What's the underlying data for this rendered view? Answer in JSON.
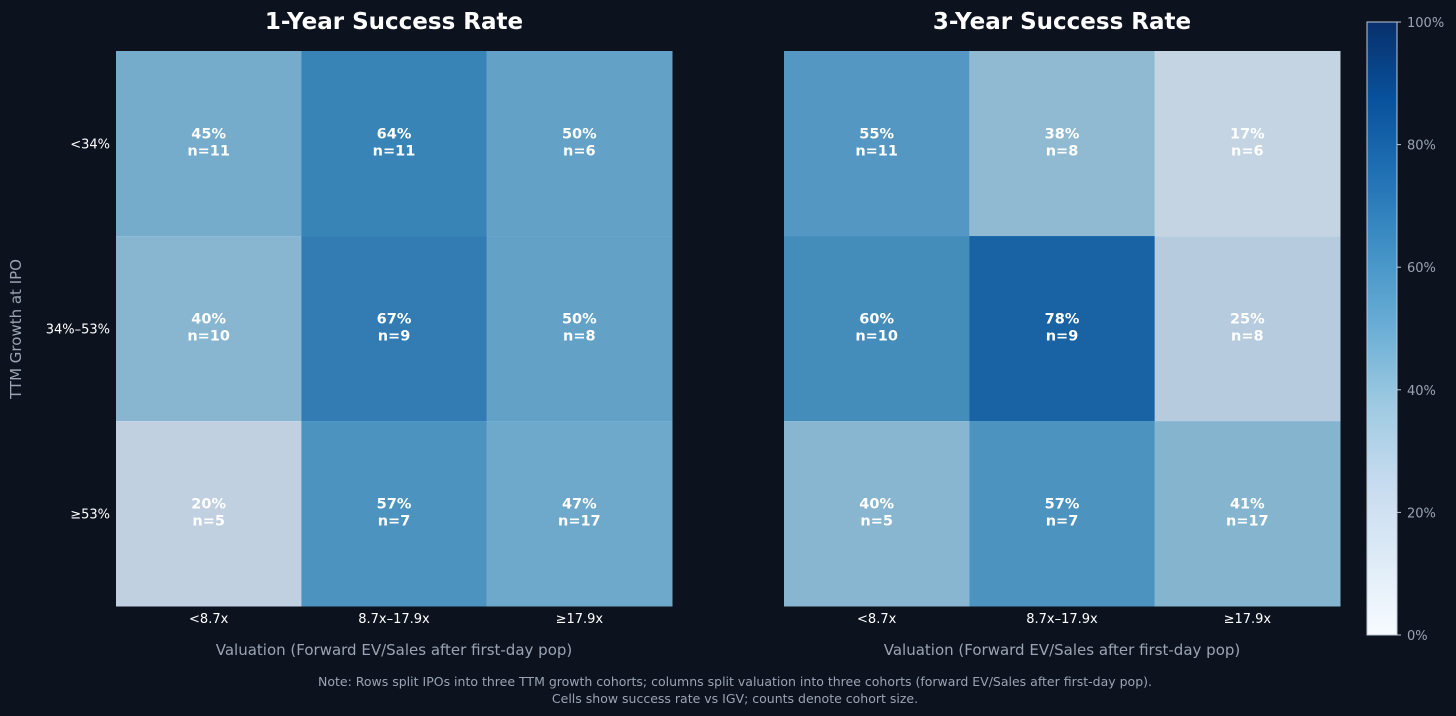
{
  "chart_data": [
    {
      "type": "heatmap",
      "title": "1-Year Success Rate",
      "xlabel": "Valuation (Forward EV/Sales after first-day pop)",
      "ylabel": "TTM Growth at IPO",
      "x_categories": [
        "<8.7x",
        "8.7x–17.9x",
        "≥17.9x"
      ],
      "y_categories": [
        "<34%",
        "34%–53%",
        "≥53%"
      ],
      "values": [
        [
          45,
          64,
          50
        ],
        [
          40,
          67,
          50
        ],
        [
          20,
          57,
          47
        ]
      ],
      "labels": [
        [
          "45%",
          "64%",
          "50%"
        ],
        [
          "40%",
          "67%",
          "50%"
        ],
        [
          "20%",
          "57%",
          "47%"
        ]
      ],
      "counts": [
        [
          "n=11",
          "n=11",
          "n=6"
        ],
        [
          "n=10",
          "n=9",
          "n=8"
        ],
        [
          "n=5",
          "n=7",
          "n=17"
        ]
      ]
    },
    {
      "type": "heatmap",
      "title": "3-Year Success Rate",
      "xlabel": "Valuation (Forward EV/Sales after first-day pop)",
      "x_categories": [
        "<8.7x",
        "8.7x–17.9x",
        "≥17.9x"
      ],
      "y_categories": [
        "<34%",
        "34%–53%",
        "≥53%"
      ],
      "values": [
        [
          55,
          38,
          17
        ],
        [
          60,
          78,
          25
        ],
        [
          40,
          57,
          41
        ]
      ],
      "labels": [
        [
          "55%",
          "38%",
          "17%"
        ],
        [
          "60%",
          "78%",
          "25%"
        ],
        [
          "40%",
          "57%",
          "41%"
        ]
      ],
      "counts": [
        [
          "n=11",
          "n=8",
          "n=6"
        ],
        [
          "n=10",
          "n=9",
          "n=8"
        ],
        [
          "n=5",
          "n=7",
          "n=17"
        ]
      ]
    }
  ],
  "colorbar": {
    "range": [
      0,
      100
    ],
    "ticks": [
      "0%",
      "20%",
      "40%",
      "60%",
      "80%",
      "100%"
    ],
    "colormap": [
      "#f7fbff",
      "#deebf7",
      "#c6dbef",
      "#9ecae1",
      "#6baed6",
      "#4292c6",
      "#2171b5",
      "#08519c",
      "#08306b"
    ]
  },
  "note": {
    "line1": "Note: Rows split IPOs into three TTM growth cohorts; columns split valuation into three cohorts (forward EV/Sales after first-day pop).",
    "line2": "Cells show success rate vs IGV; counts denote cohort size."
  },
  "colors": {
    "background": "#0c121e",
    "text": "#ffffff",
    "muted": "#9aa4b4"
  }
}
